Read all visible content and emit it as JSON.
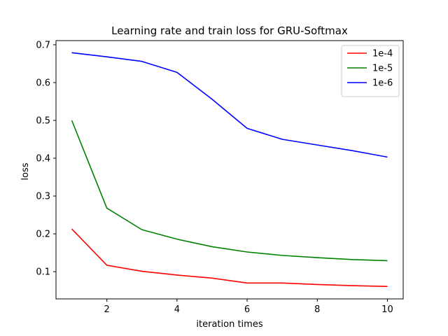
{
  "chart_data": {
    "type": "line",
    "title": "Learning rate and train loss for GRU-Softmax",
    "xlabel": "iteration times",
    "ylabel": "loss",
    "x": [
      1,
      2,
      3,
      4,
      5,
      6,
      7,
      8,
      9,
      10
    ],
    "xlim": [
      0.55,
      10.45
    ],
    "ylim": [
      0.028,
      0.711
    ],
    "xticks": [
      2,
      4,
      6,
      8,
      10
    ],
    "yticks": [
      0.1,
      0.2,
      0.3,
      0.4,
      0.5,
      0.6,
      0.7
    ],
    "grid": false,
    "legend_position": "top-right",
    "series": [
      {
        "name": "1e-4",
        "color": "#ff0000",
        "values": [
          0.213,
          0.117,
          0.101,
          0.091,
          0.083,
          0.07,
          0.07,
          0.066,
          0.063,
          0.061
        ]
      },
      {
        "name": "1e-5",
        "color": "#008000",
        "values": [
          0.5,
          0.268,
          0.211,
          0.186,
          0.166,
          0.152,
          0.143,
          0.137,
          0.132,
          0.129
        ]
      },
      {
        "name": "1e-6",
        "color": "#0000ff",
        "values": [
          0.679,
          0.668,
          0.656,
          0.627,
          0.556,
          0.479,
          0.45,
          0.435,
          0.42,
          0.403
        ]
      }
    ]
  }
}
